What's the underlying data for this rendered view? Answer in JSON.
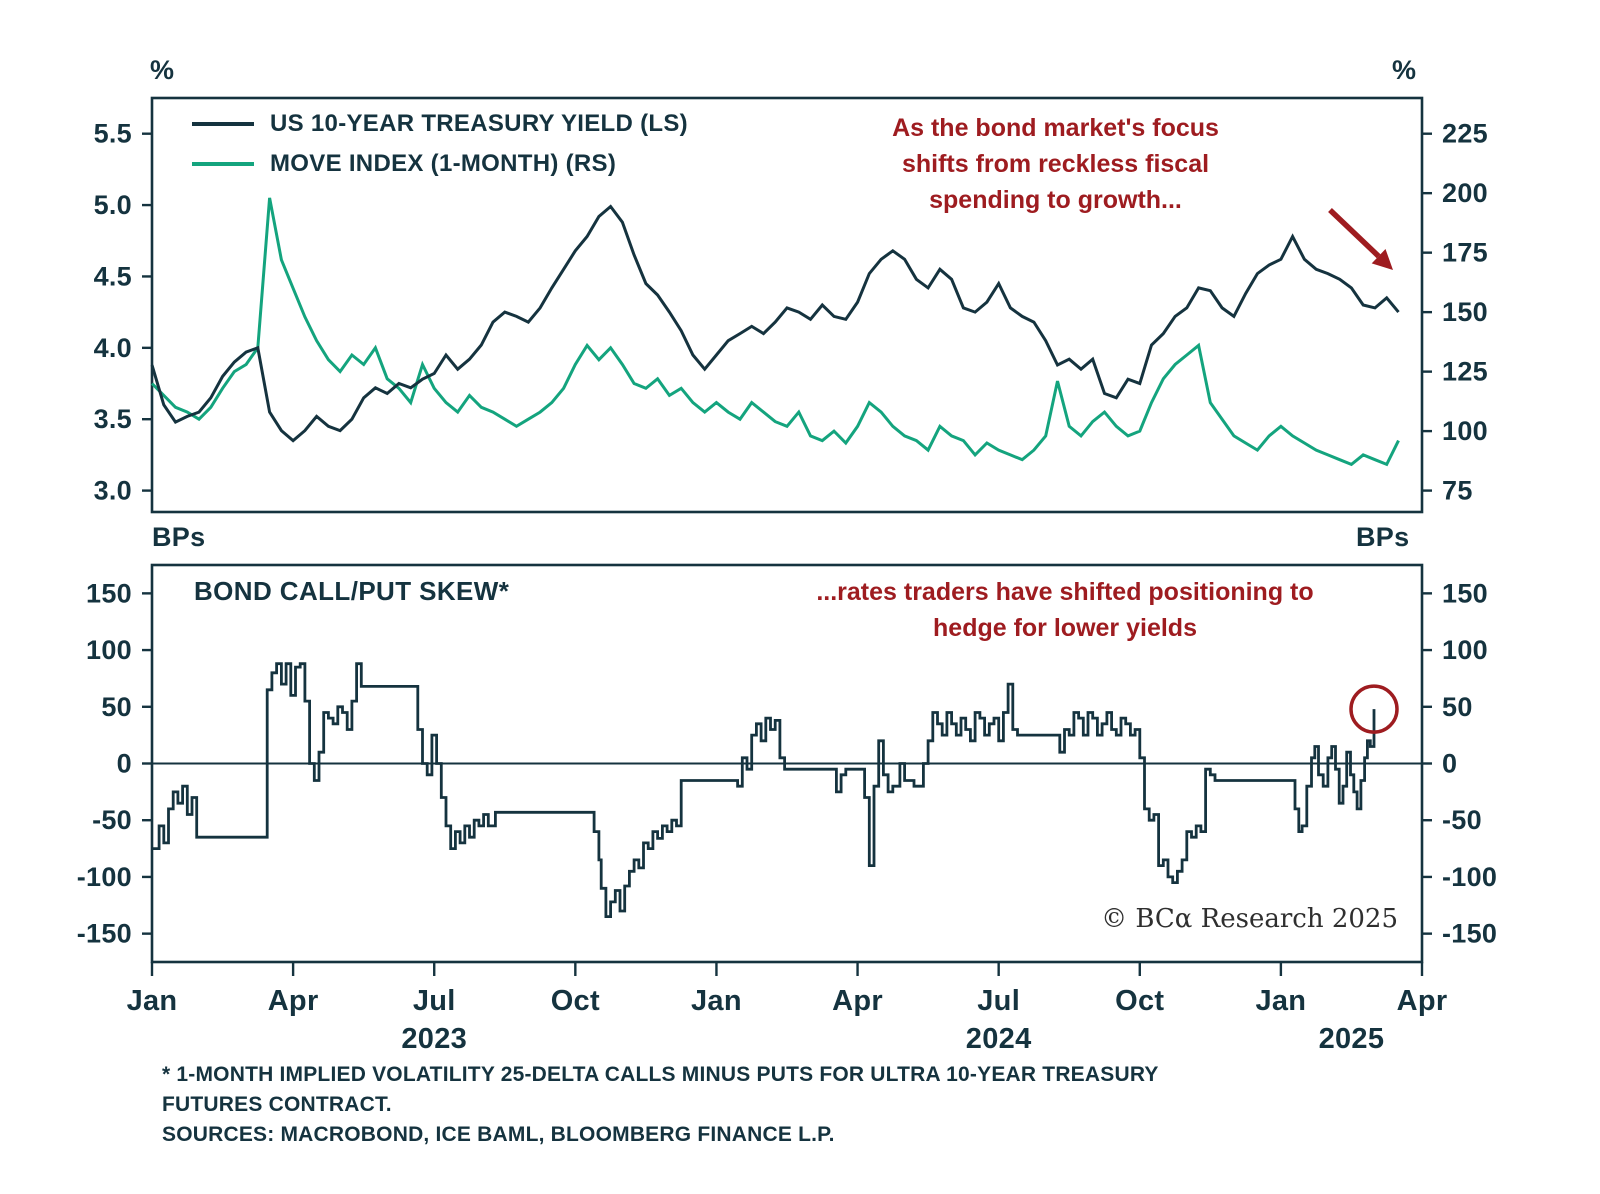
{
  "colors": {
    "navy": "#15333F",
    "green": "#14A47E",
    "red": "#9E1C20",
    "copyright_gray": "#2F2F2F",
    "background": "#FFFFFF"
  },
  "top_panel": {
    "left_unit": "%",
    "right_unit": "%",
    "legend": [
      {
        "label": "US 10-YEAR TREASURY YIELD (LS)",
        "color_key": "navy"
      },
      {
        "label": "MOVE INDEX (1-MONTH) (RS)",
        "color_key": "green"
      }
    ],
    "annotation": "As the bond market's focus shifts from reckless fiscal spending to growth..."
  },
  "bottom_panel": {
    "left_unit": "BPs",
    "right_unit": "BPs",
    "title": "BOND CALL/PUT SKEW*",
    "annotation": "...rates traders have shifted positioning to hedge for lower yields"
  },
  "copyright": "© BCα Research 2025",
  "footnotes": [
    "* 1-MONTH IMPLIED VOLATILITY 25-DELTA CALLS MINUS PUTS FOR ULTRA 10-YEAR TREASURY",
    "FUTURES CONTRACT.",
    "SOURCES: MACROBOND, ICE BAML, BLOOMBERG FINANCE L.P."
  ],
  "chart_data": [
    {
      "type": "line",
      "title": "US 10-YEAR TREASURY YIELD (LS) vs MOVE INDEX (1-MONTH) (RS)",
      "x": {
        "range_months": [
          0,
          27
        ],
        "start_label": "Jan 2023",
        "end_label": "Apr 2025",
        "tick_months": [
          0,
          3,
          6,
          9,
          12,
          15,
          18,
          21,
          24,
          27
        ],
        "tick_labels": [
          "Jan",
          "Apr",
          "Jul",
          "Oct",
          "Jan",
          "Apr",
          "Jul",
          "Oct",
          "Jan",
          "Apr"
        ],
        "year_labels": [
          {
            "label": "2023",
            "month": 6
          },
          {
            "label": "2024",
            "month": 18
          },
          {
            "label": "2025",
            "month": 25.5
          }
        ]
      },
      "left_axis": {
        "unit": "%",
        "ticks": [
          3.0,
          3.5,
          4.0,
          4.5,
          5.0,
          5.5
        ],
        "tick_labels": [
          "3.0",
          "3.5",
          "4.0",
          "4.5",
          "5.0",
          "5.5"
        ],
        "lim": [
          2.85,
          5.75
        ]
      },
      "right_axis": {
        "unit": "%",
        "ticks": [
          75,
          100,
          125,
          150,
          175,
          200,
          225
        ],
        "tick_labels": [
          "75",
          "100",
          "125",
          "150",
          "175",
          "200",
          "225"
        ],
        "lim": [
          66,
          240
        ]
      },
      "series": [
        {
          "name": "US 10-YEAR TREASURY YIELD (LS)",
          "axis": "left",
          "color": "#15333F",
          "x_start": 0,
          "x_step": 0.25,
          "values": [
            3.88,
            3.6,
            3.48,
            3.52,
            3.55,
            3.65,
            3.8,
            3.9,
            3.97,
            4.0,
            3.55,
            3.42,
            3.35,
            3.42,
            3.52,
            3.45,
            3.42,
            3.5,
            3.65,
            3.72,
            3.68,
            3.75,
            3.72,
            3.78,
            3.82,
            3.95,
            3.85,
            3.92,
            4.02,
            4.18,
            4.25,
            4.22,
            4.18,
            4.28,
            4.42,
            4.55,
            4.68,
            4.78,
            4.92,
            4.99,
            4.88,
            4.65,
            4.45,
            4.37,
            4.25,
            4.12,
            3.95,
            3.85,
            3.95,
            4.05,
            4.1,
            4.15,
            4.1,
            4.18,
            4.28,
            4.25,
            4.2,
            4.3,
            4.22,
            4.2,
            4.32,
            4.52,
            4.62,
            4.68,
            4.62,
            4.48,
            4.42,
            4.55,
            4.48,
            4.28,
            4.25,
            4.32,
            4.45,
            4.28,
            4.22,
            4.18,
            4.05,
            3.88,
            3.92,
            3.85,
            3.92,
            3.68,
            3.65,
            3.78,
            3.75,
            4.02,
            4.1,
            4.22,
            4.28,
            4.42,
            4.4,
            4.28,
            4.22,
            4.38,
            4.52,
            4.58,
            4.62,
            4.78,
            4.62,
            4.55,
            4.52,
            4.48,
            4.42,
            4.3,
            4.28,
            4.35,
            4.25
          ]
        },
        {
          "name": "MOVE INDEX (1-MONTH) (RS)",
          "axis": "right",
          "color": "#14A47E",
          "x_start": 0,
          "x_step": 0.25,
          "values": [
            120,
            115,
            110,
            108,
            105,
            110,
            118,
            125,
            128,
            135,
            198,
            172,
            160,
            148,
            138,
            130,
            125,
            132,
            128,
            135,
            122,
            118,
            112,
            128,
            118,
            112,
            108,
            115,
            110,
            108,
            105,
            102,
            105,
            108,
            112,
            118,
            128,
            136,
            130,
            135,
            128,
            120,
            118,
            122,
            115,
            118,
            112,
            108,
            112,
            108,
            105,
            112,
            108,
            104,
            102,
            108,
            98,
            96,
            100,
            95,
            102,
            112,
            108,
            102,
            98,
            96,
            92,
            102,
            98,
            96,
            90,
            95,
            92,
            90,
            88,
            92,
            98,
            121,
            102,
            98,
            104,
            108,
            102,
            98,
            100,
            112,
            122,
            128,
            132,
            136,
            112,
            105,
            98,
            95,
            92,
            98,
            102,
            98,
            95,
            92,
            90,
            88,
            86,
            90,
            88,
            86,
            96
          ]
        }
      ]
    },
    {
      "type": "step-line",
      "title": "BOND CALL/PUT SKEW*",
      "axis": {
        "unit": "BPs",
        "ticks": [
          -150,
          -100,
          -50,
          0,
          50,
          100,
          150
        ],
        "tick_labels": [
          "-150",
          "-100",
          "-50",
          "0",
          "50",
          "100",
          "150"
        ],
        "lim": [
          -175,
          175
        ]
      },
      "zero_line": true,
      "series": [
        {
          "name": "BOND CALL/PUT SKEW*",
          "color": "#15333F",
          "points": [
            [
              0.0,
              -75
            ],
            [
              0.15,
              -55
            ],
            [
              0.25,
              -70
            ],
            [
              0.35,
              -40
            ],
            [
              0.45,
              -25
            ],
            [
              0.55,
              -35
            ],
            [
              0.65,
              -20
            ],
            [
              0.75,
              -45
            ],
            [
              0.85,
              -30
            ],
            [
              0.95,
              -65
            ],
            [
              2.35,
              -65
            ],
            [
              2.45,
              65
            ],
            [
              2.55,
              80
            ],
            [
              2.65,
              88
            ],
            [
              2.75,
              70
            ],
            [
              2.85,
              88
            ],
            [
              2.95,
              60
            ],
            [
              3.05,
              85
            ],
            [
              3.15,
              88
            ],
            [
              3.25,
              55
            ],
            [
              3.35,
              0
            ],
            [
              3.45,
              -15
            ],
            [
              3.55,
              10
            ],
            [
              3.65,
              45
            ],
            [
              3.75,
              40
            ],
            [
              3.85,
              35
            ],
            [
              3.95,
              50
            ],
            [
              4.05,
              45
            ],
            [
              4.15,
              30
            ],
            [
              4.25,
              55
            ],
            [
              4.35,
              88
            ],
            [
              4.45,
              68
            ],
            [
              5.55,
              68
            ],
            [
              5.65,
              30
            ],
            [
              5.75,
              0
            ],
            [
              5.85,
              -10
            ],
            [
              5.95,
              25
            ],
            [
              6.05,
              0
            ],
            [
              6.15,
              -30
            ],
            [
              6.25,
              -55
            ],
            [
              6.35,
              -75
            ],
            [
              6.45,
              -60
            ],
            [
              6.55,
              -70
            ],
            [
              6.65,
              -55
            ],
            [
              6.75,
              -65
            ],
            [
              6.85,
              -50
            ],
            [
              6.95,
              -55
            ],
            [
              7.05,
              -45
            ],
            [
              7.15,
              -55
            ],
            [
              7.3,
              -43
            ],
            [
              9.3,
              -43
            ],
            [
              9.4,
              -60
            ],
            [
              9.5,
              -85
            ],
            [
              9.55,
              -110
            ],
            [
              9.65,
              -135
            ],
            [
              9.75,
              -122
            ],
            [
              9.85,
              -112
            ],
            [
              9.95,
              -130
            ],
            [
              10.05,
              -108
            ],
            [
              10.15,
              -95
            ],
            [
              10.25,
              -85
            ],
            [
              10.35,
              -92
            ],
            [
              10.45,
              -70
            ],
            [
              10.55,
              -75
            ],
            [
              10.65,
              -60
            ],
            [
              10.75,
              -66
            ],
            [
              10.85,
              -55
            ],
            [
              10.95,
              -60
            ],
            [
              11.05,
              -50
            ],
            [
              11.15,
              -55
            ],
            [
              11.25,
              -15
            ],
            [
              12.35,
              -15
            ],
            [
              12.45,
              -20
            ],
            [
              12.55,
              5
            ],
            [
              12.65,
              -5
            ],
            [
              12.75,
              25
            ],
            [
              12.85,
              35
            ],
            [
              12.95,
              20
            ],
            [
              13.05,
              40
            ],
            [
              13.15,
              30
            ],
            [
              13.25,
              38
            ],
            [
              13.35,
              5
            ],
            [
              13.45,
              -5
            ],
            [
              14.45,
              -5
            ],
            [
              14.55,
              -25
            ],
            [
              14.65,
              -10
            ],
            [
              14.75,
              -5
            ],
            [
              15.05,
              -5
            ],
            [
              15.15,
              -30
            ],
            [
              15.25,
              -90
            ],
            [
              15.35,
              -20
            ],
            [
              15.45,
              20
            ],
            [
              15.55,
              -10
            ],
            [
              15.65,
              -25
            ],
            [
              15.75,
              -20
            ],
            [
              15.9,
              0
            ],
            [
              16.0,
              -15
            ],
            [
              16.2,
              -20
            ],
            [
              16.4,
              0
            ],
            [
              16.5,
              20
            ],
            [
              16.6,
              45
            ],
            [
              16.7,
              35
            ],
            [
              16.8,
              25
            ],
            [
              16.9,
              45
            ],
            [
              17.0,
              35
            ],
            [
              17.1,
              25
            ],
            [
              17.2,
              40
            ],
            [
              17.3,
              30
            ],
            [
              17.4,
              20
            ],
            [
              17.5,
              45
            ],
            [
              17.6,
              40
            ],
            [
              17.7,
              25
            ],
            [
              17.8,
              35
            ],
            [
              17.9,
              40
            ],
            [
              18.0,
              20
            ],
            [
              18.1,
              45
            ],
            [
              18.2,
              70
            ],
            [
              18.3,
              30
            ],
            [
              18.4,
              25
            ],
            [
              19.2,
              25
            ],
            [
              19.3,
              10
            ],
            [
              19.4,
              30
            ],
            [
              19.5,
              25
            ],
            [
              19.6,
              45
            ],
            [
              19.7,
              40
            ],
            [
              19.8,
              25
            ],
            [
              19.9,
              45
            ],
            [
              20.0,
              40
            ],
            [
              20.1,
              25
            ],
            [
              20.2,
              35
            ],
            [
              20.3,
              45
            ],
            [
              20.4,
              30
            ],
            [
              20.5,
              25
            ],
            [
              20.6,
              40
            ],
            [
              20.7,
              35
            ],
            [
              20.8,
              25
            ],
            [
              20.9,
              30
            ],
            [
              21.0,
              5
            ],
            [
              21.1,
              -40
            ],
            [
              21.2,
              -50
            ],
            [
              21.3,
              -45
            ],
            [
              21.4,
              -90
            ],
            [
              21.5,
              -85
            ],
            [
              21.6,
              -100
            ],
            [
              21.7,
              -105
            ],
            [
              21.8,
              -95
            ],
            [
              21.9,
              -85
            ],
            [
              22.0,
              -60
            ],
            [
              22.1,
              -65
            ],
            [
              22.2,
              -55
            ],
            [
              22.3,
              -60
            ],
            [
              22.4,
              -5
            ],
            [
              22.5,
              -10
            ],
            [
              22.6,
              -15
            ],
            [
              24.2,
              -15
            ],
            [
              24.3,
              -40
            ],
            [
              24.38,
              -60
            ],
            [
              24.45,
              -55
            ],
            [
              24.55,
              -20
            ],
            [
              24.65,
              5
            ],
            [
              24.72,
              15
            ],
            [
              24.8,
              -10
            ],
            [
              24.9,
              -20
            ],
            [
              25.0,
              5
            ],
            [
              25.08,
              15
            ],
            [
              25.16,
              -5
            ],
            [
              25.24,
              -35
            ],
            [
              25.32,
              -20
            ],
            [
              25.4,
              10
            ],
            [
              25.48,
              -10
            ],
            [
              25.55,
              -25
            ],
            [
              25.62,
              -40
            ],
            [
              25.7,
              -15
            ],
            [
              25.78,
              5
            ],
            [
              25.84,
              20
            ],
            [
              25.9,
              15
            ],
            [
              25.98,
              48
            ]
          ]
        }
      ],
      "highlight": {
        "month": 25.98,
        "value": 48,
        "color": "#9E1C20"
      }
    }
  ]
}
